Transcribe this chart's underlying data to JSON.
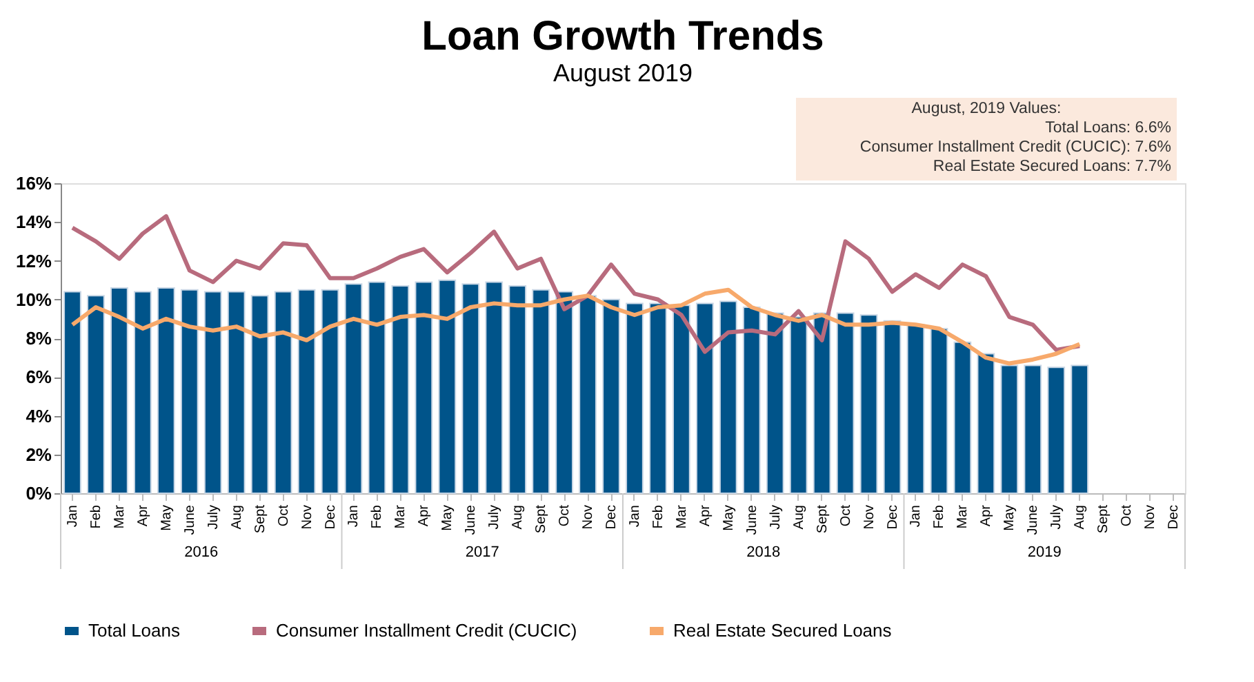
{
  "chart_data": {
    "type": "bar",
    "title": "Loan Growth Trends",
    "subtitle": "August 2019",
    "categories": [
      "Jan",
      "Feb",
      "Mar",
      "Apr",
      "May",
      "June",
      "July",
      "Aug",
      "Sept",
      "Oct",
      "Nov",
      "Dec",
      "Jan",
      "Feb",
      "Mar",
      "Apr",
      "May",
      "June",
      "July",
      "Aug",
      "Sept",
      "Oct",
      "Nov",
      "Dec",
      "Jan",
      "Feb",
      "Mar",
      "Apr",
      "May",
      "June",
      "July",
      "Aug",
      "Sept",
      "Oct",
      "Nov",
      "Dec",
      "Jan",
      "Feb",
      "Mar",
      "Apr",
      "May",
      "June",
      "July",
      "Aug",
      "Sept",
      "Oct",
      "Nov",
      "Dec"
    ],
    "series": [
      {
        "name": "Total Loans",
        "color": "#00548a",
        "values": [
          10.4,
          10.2,
          10.6,
          10.4,
          10.6,
          10.5,
          10.4,
          10.4,
          10.2,
          10.4,
          10.5,
          10.5,
          10.8,
          10.9,
          10.7,
          10.9,
          11.0,
          10.8,
          10.9,
          10.7,
          10.5,
          10.4,
          10.2,
          10.0,
          9.8,
          9.8,
          9.7,
          9.8,
          9.9,
          9.6,
          9.3,
          9.1,
          9.3,
          9.3,
          9.2,
          8.9,
          8.7,
          8.5,
          7.8,
          7.2,
          6.6,
          6.6,
          6.5,
          6.6,
          null,
          null,
          null,
          null
        ]
      },
      {
        "name": "Consumer Installment Credit (CUCIC)",
        "type": "line",
        "color": "#b86b7d",
        "values": [
          13.7,
          13.0,
          12.1,
          13.4,
          14.3,
          11.5,
          10.9,
          12.0,
          11.6,
          12.9,
          12.8,
          11.1,
          11.1,
          11.6,
          12.2,
          12.6,
          11.4,
          12.4,
          13.5,
          11.6,
          12.1,
          9.5,
          10.2,
          11.8,
          10.3,
          10.0,
          9.2,
          7.3,
          8.3,
          8.4,
          8.2,
          9.4,
          7.9,
          13.0,
          12.1,
          10.4,
          11.3,
          10.6,
          11.8,
          11.2,
          9.1,
          8.7,
          7.4,
          7.6,
          null,
          null,
          null,
          null
        ]
      },
      {
        "name": "Real Estate Secured Loans",
        "type": "line",
        "color": "#f7a96b",
        "values": [
          8.7,
          9.6,
          9.1,
          8.5,
          9.0,
          8.6,
          8.4,
          8.6,
          8.1,
          8.3,
          7.9,
          8.6,
          9.0,
          8.7,
          9.1,
          9.2,
          9.0,
          9.6,
          9.8,
          9.7,
          9.7,
          10.0,
          10.2,
          9.6,
          9.2,
          9.6,
          9.7,
          10.3,
          10.5,
          9.6,
          9.2,
          8.9,
          9.2,
          8.7,
          8.7,
          8.8,
          8.7,
          8.5,
          7.8,
          7.0,
          6.7,
          6.9,
          7.2,
          7.7,
          null,
          null,
          null,
          null
        ]
      }
    ],
    "ylim": [
      0,
      16
    ],
    "yticks": [
      {
        "value": 0,
        "label": "0%"
      },
      {
        "value": 2,
        "label": "2%"
      },
      {
        "value": 4,
        "label": "4%"
      },
      {
        "value": 6,
        "label": "6%"
      },
      {
        "value": 8,
        "label": "8%"
      },
      {
        "value": 10,
        "label": "10%"
      },
      {
        "value": 12,
        "label": "12%"
      },
      {
        "value": 14,
        "label": "14%"
      },
      {
        "value": 16,
        "label": "16%"
      }
    ],
    "legend": "bottom",
    "line_style": "solid",
    "marker": "none",
    "annotations": [
      "2016",
      "2017",
      "2018",
      "2019",
      "August, 2019 Values:",
      "Total Loans: 6.6%",
      "Consumer Installment Credit (CUCIC): 7.6%",
      "Real Estate Secured Loans: 7.7%"
    ]
  }
}
